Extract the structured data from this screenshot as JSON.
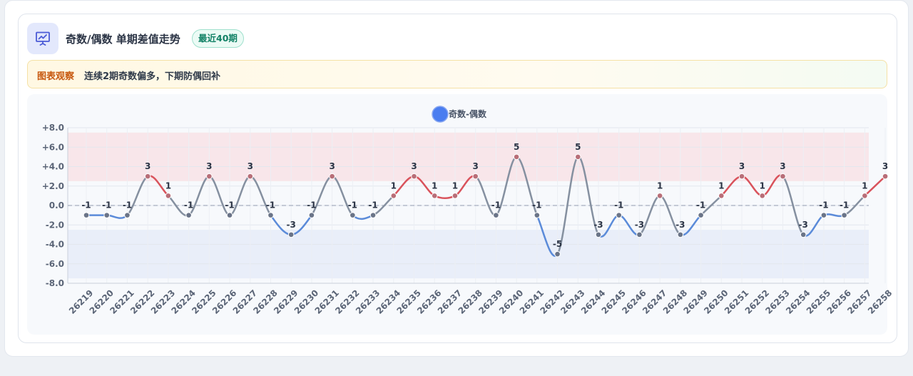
{
  "header": {
    "title": "奇数/偶数 单期差值走势",
    "badge": "最近40期",
    "icon": "presentation-chart-icon"
  },
  "insight": {
    "label": "图表观察",
    "text": "连续2期奇数偏多，下期防偶回补"
  },
  "colors": {
    "positive": "#d9535c",
    "negative": "#5b8bd9",
    "neutral": "#8590a0",
    "legend": "#4a7df0",
    "upper_band": "#f8e3e6",
    "lower_band": "#e6ecf8"
  },
  "chart_data": {
    "type": "line",
    "smooth": true,
    "legend": {
      "position": "top-center",
      "entries": [
        "奇数-偶数"
      ]
    },
    "categories": [
      "26219",
      "26220",
      "26221",
      "26222",
      "26223",
      "26224",
      "26225",
      "26226",
      "26227",
      "26228",
      "26229",
      "26230",
      "26231",
      "26232",
      "26233",
      "26234",
      "26235",
      "26236",
      "26237",
      "26238",
      "26239",
      "26240",
      "26241",
      "26242",
      "26243",
      "26244",
      "26245",
      "26246",
      "26247",
      "26248",
      "26249",
      "26250",
      "26251",
      "26252",
      "26253",
      "26254",
      "26255",
      "26256",
      "26257",
      "26258"
    ],
    "series": [
      {
        "name": "奇数-偶数",
        "values": [
          -1,
          -1,
          -1,
          3,
          1,
          -1,
          3,
          -1,
          3,
          -1,
          -3,
          -1,
          3,
          -1,
          -1,
          1,
          3,
          1,
          1,
          3,
          -1,
          5,
          -1,
          -5,
          5,
          -3,
          -1,
          -3,
          1,
          -3,
          -1,
          1,
          3,
          1,
          3,
          -3,
          -1,
          -1,
          1,
          3
        ]
      }
    ],
    "ylim": [
      -8,
      8
    ],
    "yticks": [
      "+8.0",
      "+6.0",
      "+4.0",
      "+2.0",
      "0.0",
      "-2.0",
      "-4.0",
      "-6.0",
      "-8.0"
    ],
    "ytick_values": [
      8,
      6,
      4,
      2,
      0,
      -2,
      -4,
      -6,
      -8
    ],
    "bands": [
      {
        "from": 2.5,
        "to": 7.5,
        "color": "upper"
      },
      {
        "from": -7.5,
        "to": -2.5,
        "color": "lower"
      }
    ],
    "reference_line": 0,
    "grid": true
  }
}
